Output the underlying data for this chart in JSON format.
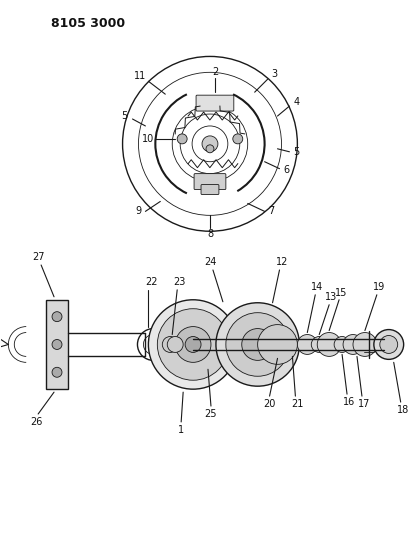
{
  "title_code": "8105 3000",
  "background_color": "#ffffff",
  "line_color": "#1a1a1a",
  "label_color": "#111111",
  "fig_width": 4.11,
  "fig_height": 5.33,
  "dpi": 100
}
